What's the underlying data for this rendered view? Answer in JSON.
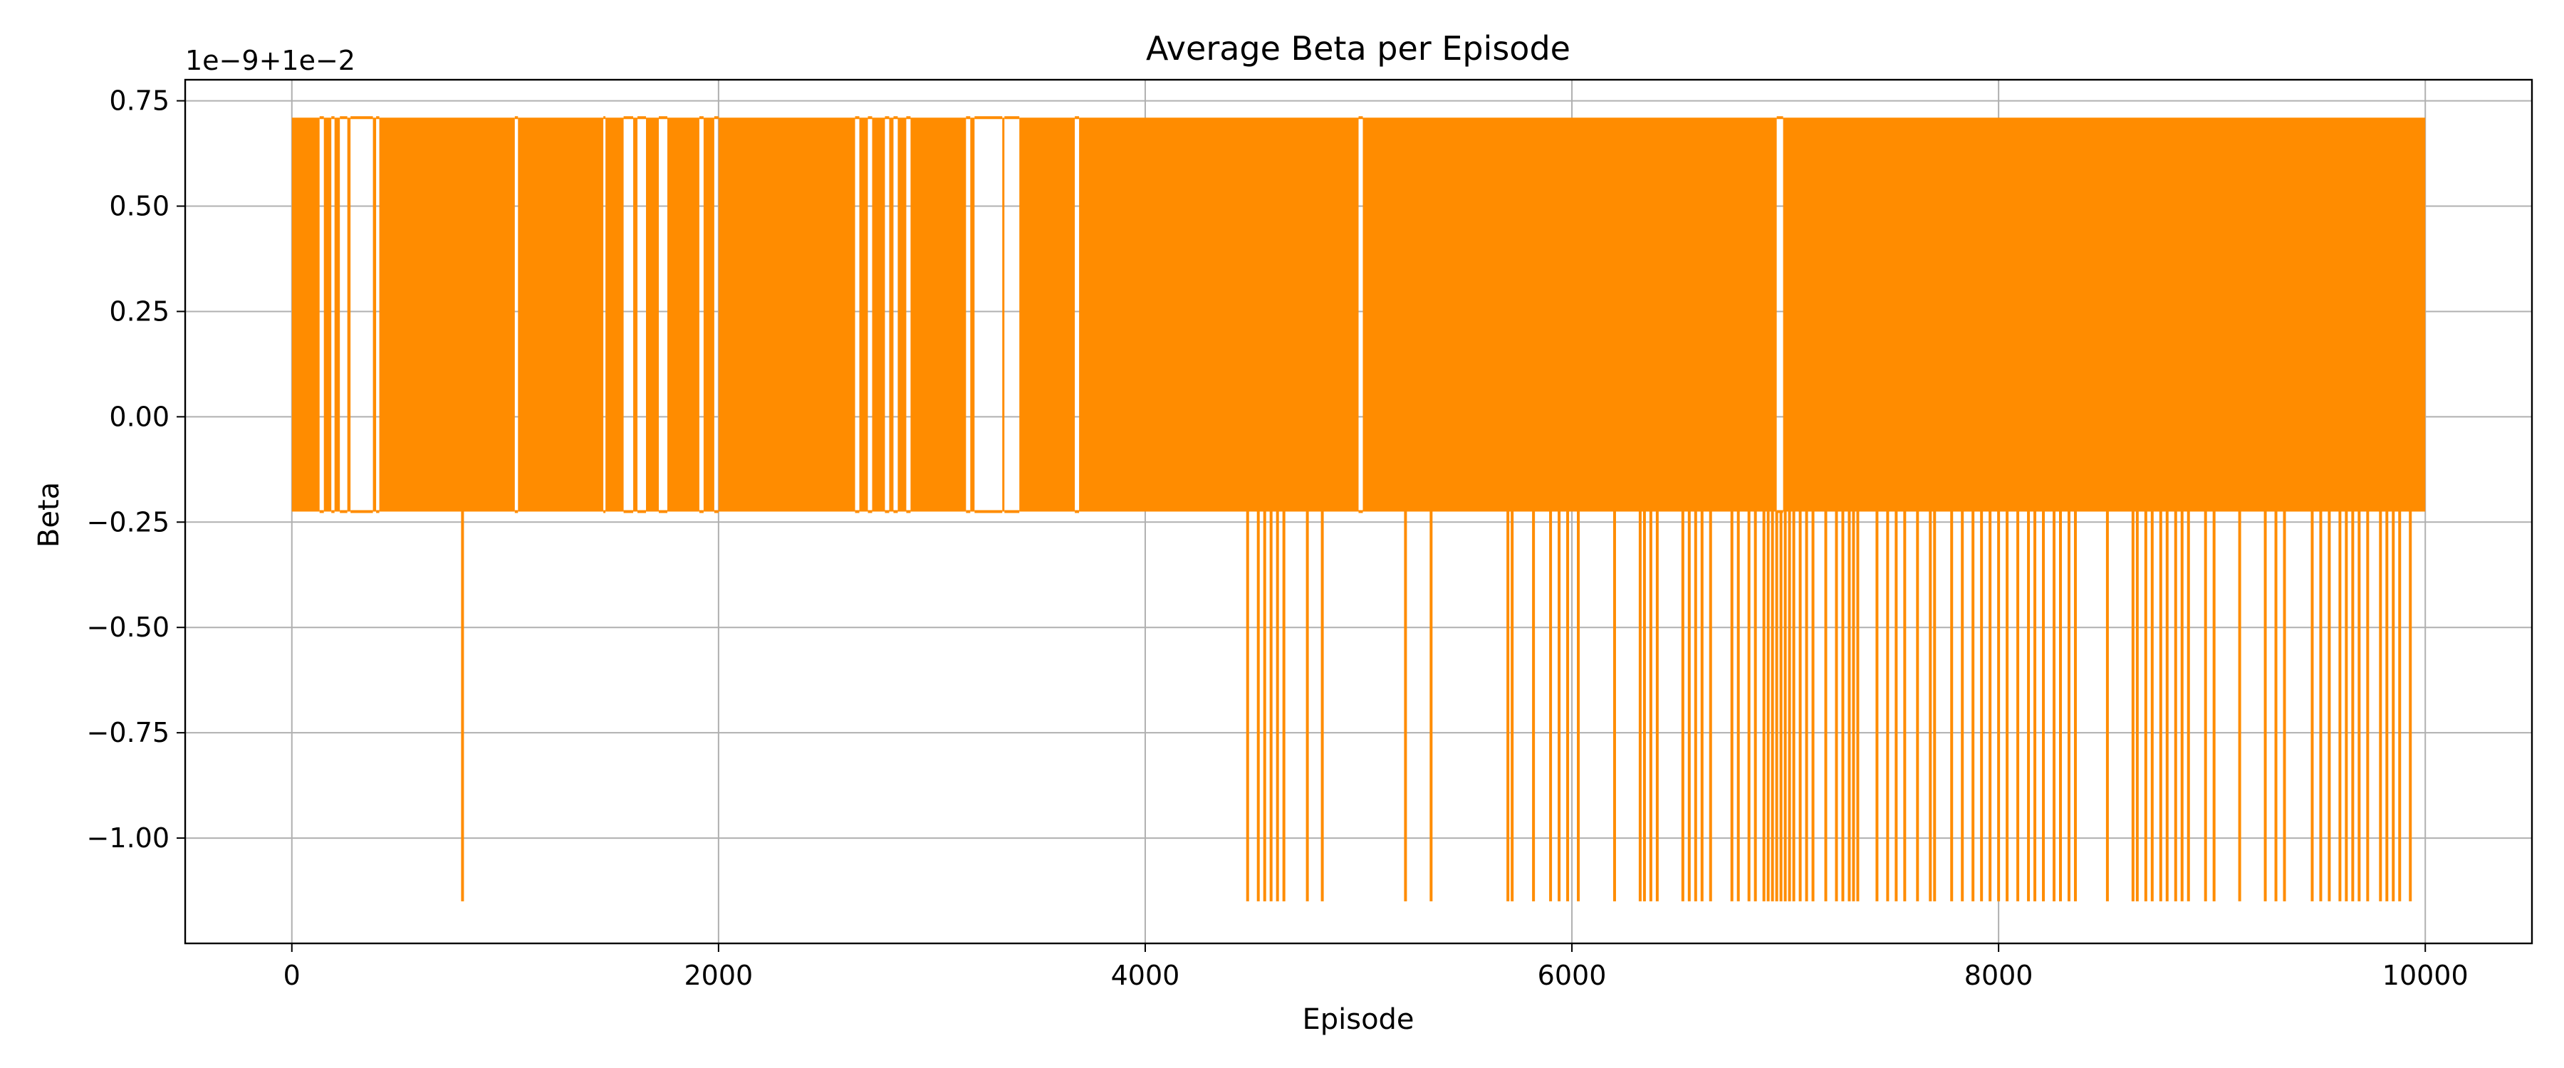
{
  "chart_data": {
    "type": "line",
    "title": "Average Beta per Episode",
    "xlabel": "Episode",
    "ylabel": "Beta",
    "offset_label": "1e−9+1e−2",
    "xlim": [
      -500,
      10500
    ],
    "ylim": [
      -1.25,
      0.8
    ],
    "grid": true,
    "x_ticks": [
      0,
      2000,
      4000,
      6000,
      8000,
      10000
    ],
    "x_tick_labels": [
      "0",
      "2000",
      "4000",
      "6000",
      "8000",
      "10000"
    ],
    "y_ticks": [
      0.75,
      0.5,
      0.25,
      0.0,
      -0.25,
      -0.5,
      -0.75,
      -1.0
    ],
    "y_tick_labels": [
      "0.75",
      "0.50",
      "0.25",
      "0.00",
      "−0.25",
      "−0.50",
      "−0.75",
      "−1.00"
    ],
    "series": [
      {
        "color": "#ff8c00",
        "episode_range": [
          0,
          10000
        ],
        "levels": [
          0.71,
          -0.225,
          -1.15
        ],
        "dense_band": [
          -0.225,
          0.71
        ],
        "gaps": [
          [
            130,
            150
          ],
          [
            185,
            200
          ],
          [
            225,
            260
          ],
          [
            275,
            380
          ],
          [
            395,
            410
          ],
          [
            1045,
            1060
          ],
          [
            1460,
            1470
          ],
          [
            1555,
            1600
          ],
          [
            1620,
            1660
          ],
          [
            1720,
            1760
          ],
          [
            1910,
            1930
          ],
          [
            1980,
            2000
          ],
          [
            2640,
            2660
          ],
          [
            2700,
            2720
          ],
          [
            2780,
            2800
          ],
          [
            2820,
            2840
          ],
          [
            2880,
            2900
          ],
          [
            3160,
            3180
          ],
          [
            3200,
            3330
          ],
          [
            3340,
            3410
          ],
          [
            3670,
            3690
          ],
          [
            5000,
            5020
          ],
          [
            6960,
            6990
          ]
        ],
        "low_spikes": [
          800,
          4480,
          4530,
          4560,
          4590,
          4620,
          4650,
          4760,
          4830,
          5220,
          5340,
          5700,
          5720,
          5820,
          5900,
          5940,
          5980,
          6030,
          6200,
          6320,
          6340,
          6370,
          6400,
          6520,
          6550,
          6580,
          6610,
          6650,
          6750,
          6780,
          6830,
          6860,
          6900,
          6920,
          6940,
          6960,
          6980,
          7000,
          7020,
          7040,
          7070,
          7100,
          7130,
          7190,
          7240,
          7270,
          7300,
          7320,
          7340,
          7430,
          7480,
          7520,
          7560,
          7620,
          7680,
          7700,
          7780,
          7830,
          7880,
          7920,
          7960,
          8000,
          8040,
          8090,
          8140,
          8170,
          8210,
          8260,
          8290,
          8330,
          8360,
          8510,
          8630,
          8650,
          8690,
          8720,
          8760,
          8790,
          8830,
          8860,
          8890,
          8970,
          9010,
          9130,
          9250,
          9300,
          9340,
          9470,
          9510,
          9550,
          9600,
          9630,
          9660,
          9690,
          9730,
          9790,
          9820,
          9850,
          9880,
          9930
        ]
      }
    ]
  }
}
